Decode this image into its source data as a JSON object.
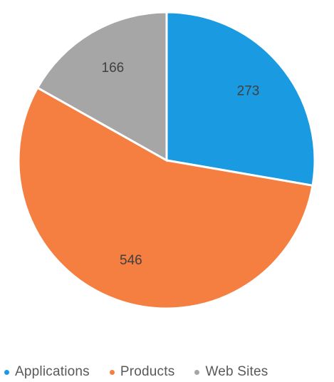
{
  "chart_data": {
    "type": "pie",
    "title": "",
    "categories": [
      "Applications",
      "Products",
      "Web Sites"
    ],
    "values": [
      273,
      546,
      166
    ],
    "colors": [
      "#1a9ae0",
      "#f57f40",
      "#a6a6a6"
    ],
    "data_labels": [
      "273",
      "546",
      "166"
    ],
    "legend_position": "bottom"
  },
  "legend": {
    "items": [
      {
        "label": "Applications",
        "color": "#1a9ae0"
      },
      {
        "label": "Products",
        "color": "#f57f40"
      },
      {
        "label": "Web Sites",
        "color": "#a6a6a6"
      }
    ]
  }
}
